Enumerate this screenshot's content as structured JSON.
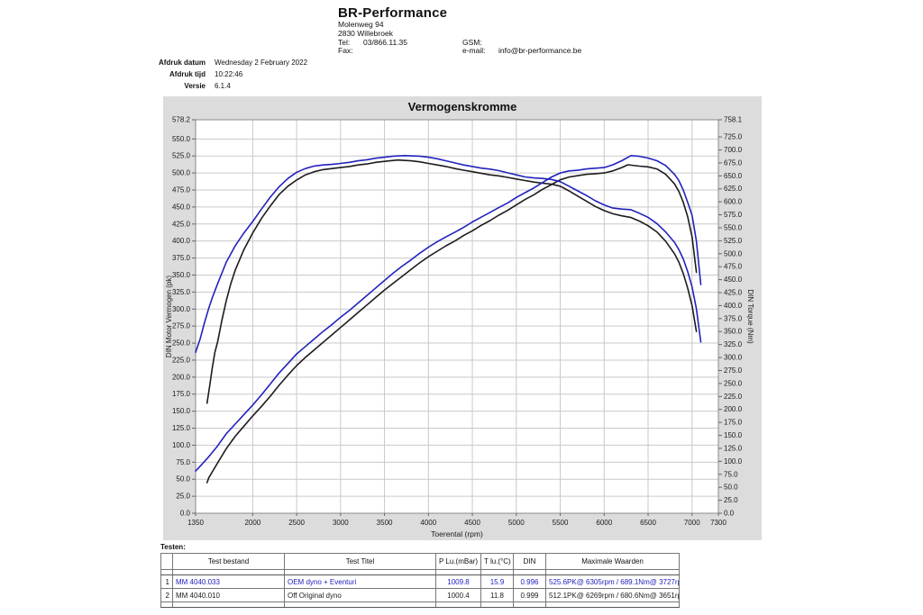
{
  "header": {
    "company": "BR-Performance",
    "address_line1": "Molenweg 94",
    "address_line2": "2830 Willebroek",
    "tel_label": "Tel:",
    "tel_value": "03/866.11.35",
    "fax_label": "Fax:",
    "fax_value": "",
    "gsm_label": "GSM:",
    "gsm_value": "",
    "email_label": "e-mail:",
    "email_value": "info@br-performance.be"
  },
  "meta": {
    "rows": [
      {
        "label": "Afdruk datum",
        "value": "Wednesday 2 February 2022"
      },
      {
        "label": "Afdruk tijd",
        "value": "10:22:46"
      },
      {
        "label": "Versie",
        "value": "6.1.4"
      }
    ]
  },
  "chart_data": {
    "type": "line",
    "title": "Vermogenskromme",
    "xlabel": "Toerental (rpm)",
    "ylabel_left": "DIN Motor Vermogen (pk)",
    "ylabel_right": "DIN Torque (Nm)",
    "x_range": [
      1350,
      7300
    ],
    "y_left_range": [
      0,
      578.2
    ],
    "y_right_range": [
      0,
      758.1
    ],
    "x_ticks": [
      1350,
      2000,
      2500,
      3000,
      3500,
      4000,
      4500,
      5000,
      5500,
      6000,
      6500,
      7000,
      7300
    ],
    "y_left_ticks": [
      578.2,
      550,
      525,
      500,
      475,
      450,
      425,
      400,
      375,
      350,
      325,
      300,
      275,
      250,
      225,
      200,
      175,
      150,
      125,
      100,
      75,
      50,
      25,
      0
    ],
    "y_right_ticks": [
      758.1,
      725,
      700,
      675,
      650,
      625,
      600,
      575,
      550,
      525,
      500,
      475,
      450,
      425,
      400,
      375,
      350,
      325,
      300,
      275,
      250,
      225,
      200,
      175,
      150,
      125,
      100,
      75,
      50,
      25,
      0
    ],
    "grid": true,
    "legend_position": "none",
    "colors": {
      "run1": "#2222bd",
      "run2": "#1c1c1c"
    },
    "series": [
      {
        "name": "OEM dyno + Eventuri - vermogen (pk)",
        "axis": "left",
        "color": "run1",
        "points": [
          [
            1350,
            62
          ],
          [
            1400,
            69
          ],
          [
            1500,
            83
          ],
          [
            1600,
            99
          ],
          [
            1700,
            117
          ],
          [
            1800,
            131
          ],
          [
            1900,
            145
          ],
          [
            2000,
            159
          ],
          [
            2100,
            174
          ],
          [
            2200,
            190
          ],
          [
            2300,
            206
          ],
          [
            2400,
            220
          ],
          [
            2500,
            234
          ],
          [
            2600,
            245
          ],
          [
            2700,
            256
          ],
          [
            2800,
            267
          ],
          [
            2900,
            277
          ],
          [
            3000,
            288
          ],
          [
            3100,
            298
          ],
          [
            3200,
            309
          ],
          [
            3300,
            320
          ],
          [
            3400,
            331
          ],
          [
            3500,
            342
          ],
          [
            3600,
            353
          ],
          [
            3700,
            363
          ],
          [
            3800,
            372
          ],
          [
            3900,
            382
          ],
          [
            4000,
            391
          ],
          [
            4100,
            399
          ],
          [
            4200,
            406
          ],
          [
            4300,
            413
          ],
          [
            4400,
            420
          ],
          [
            4500,
            428
          ],
          [
            4600,
            435
          ],
          [
            4700,
            442
          ],
          [
            4800,
            449
          ],
          [
            4900,
            456
          ],
          [
            5000,
            464
          ],
          [
            5100,
            471
          ],
          [
            5200,
            478
          ],
          [
            5300,
            486
          ],
          [
            5400,
            494
          ],
          [
            5500,
            500
          ],
          [
            5600,
            503
          ],
          [
            5700,
            504
          ],
          [
            5800,
            506
          ],
          [
            5900,
            507
          ],
          [
            6000,
            508
          ],
          [
            6100,
            512
          ],
          [
            6200,
            518
          ],
          [
            6305,
            525.6
          ],
          [
            6400,
            524.5
          ],
          [
            6500,
            522
          ],
          [
            6600,
            518
          ],
          [
            6700,
            511
          ],
          [
            6800,
            498
          ],
          [
            6850,
            489
          ],
          [
            6900,
            475
          ],
          [
            6950,
            457
          ],
          [
            7000,
            438
          ],
          [
            7050,
            400
          ],
          [
            7100,
            336
          ]
        ]
      },
      {
        "name": "OEM dyno + Eventuri - koppel (Nm)",
        "axis": "right",
        "color": "run1",
        "points": [
          [
            1350,
            310
          ],
          [
            1400,
            335
          ],
          [
            1450,
            366
          ],
          [
            1500,
            395
          ],
          [
            1550,
            420
          ],
          [
            1600,
            442
          ],
          [
            1700,
            484
          ],
          [
            1800,
            515
          ],
          [
            1900,
            540
          ],
          [
            2000,
            562
          ],
          [
            2100,
            586
          ],
          [
            2200,
            609
          ],
          [
            2300,
            629
          ],
          [
            2400,
            645
          ],
          [
            2500,
            657
          ],
          [
            2600,
            664
          ],
          [
            2700,
            669
          ],
          [
            2800,
            671
          ],
          [
            2900,
            672
          ],
          [
            3000,
            674
          ],
          [
            3100,
            676
          ],
          [
            3200,
            679
          ],
          [
            3300,
            681
          ],
          [
            3400,
            684
          ],
          [
            3500,
            686
          ],
          [
            3600,
            688
          ],
          [
            3727,
            689.1
          ],
          [
            3900,
            688
          ],
          [
            4000,
            686
          ],
          [
            4100,
            683
          ],
          [
            4200,
            679
          ],
          [
            4300,
            675
          ],
          [
            4400,
            671
          ],
          [
            4500,
            668
          ],
          [
            4600,
            665
          ],
          [
            4700,
            663
          ],
          [
            4800,
            660
          ],
          [
            4900,
            656
          ],
          [
            5000,
            652
          ],
          [
            5100,
            648
          ],
          [
            5200,
            646
          ],
          [
            5300,
            645
          ],
          [
            5400,
            643
          ],
          [
            5500,
            639
          ],
          [
            5600,
            630
          ],
          [
            5700,
            621
          ],
          [
            5800,
            612
          ],
          [
            5900,
            602
          ],
          [
            6000,
            594
          ],
          [
            6100,
            588
          ],
          [
            6200,
            586
          ],
          [
            6300,
            585
          ],
          [
            6400,
            578
          ],
          [
            6500,
            570
          ],
          [
            6600,
            558
          ],
          [
            6700,
            542
          ],
          [
            6800,
            522
          ],
          [
            6850,
            508
          ],
          [
            6900,
            490
          ],
          [
            6950,
            466
          ],
          [
            7000,
            436
          ],
          [
            7050,
            394
          ],
          [
            7100,
            330
          ]
        ]
      },
      {
        "name": "Off Original dyno - vermogen (pk)",
        "axis": "left",
        "color": "run2",
        "points": [
          [
            1480,
            45
          ],
          [
            1500,
            52
          ],
          [
            1550,
            63
          ],
          [
            1600,
            74
          ],
          [
            1700,
            95
          ],
          [
            1800,
            113
          ],
          [
            1900,
            128
          ],
          [
            2000,
            143
          ],
          [
            2100,
            157
          ],
          [
            2200,
            172
          ],
          [
            2300,
            188
          ],
          [
            2400,
            203
          ],
          [
            2500,
            217
          ],
          [
            2600,
            229
          ],
          [
            2700,
            240
          ],
          [
            2800,
            251
          ],
          [
            2900,
            262
          ],
          [
            3000,
            273
          ],
          [
            3100,
            284
          ],
          [
            3200,
            295
          ],
          [
            3300,
            306
          ],
          [
            3400,
            317
          ],
          [
            3500,
            328
          ],
          [
            3600,
            338
          ],
          [
            3700,
            348
          ],
          [
            3800,
            358
          ],
          [
            3900,
            368
          ],
          [
            4000,
            377
          ],
          [
            4100,
            385
          ],
          [
            4200,
            393
          ],
          [
            4300,
            400
          ],
          [
            4400,
            408
          ],
          [
            4500,
            415
          ],
          [
            4600,
            423
          ],
          [
            4700,
            430
          ],
          [
            4800,
            438
          ],
          [
            4900,
            445
          ],
          [
            5000,
            453
          ],
          [
            5100,
            461
          ],
          [
            5200,
            468
          ],
          [
            5300,
            476
          ],
          [
            5400,
            483
          ],
          [
            5500,
            490
          ],
          [
            5600,
            494
          ],
          [
            5700,
            496
          ],
          [
            5800,
            498
          ],
          [
            5900,
            499
          ],
          [
            6000,
            500
          ],
          [
            6100,
            503
          ],
          [
            6200,
            508
          ],
          [
            6269,
            512.1
          ],
          [
            6400,
            510
          ],
          [
            6500,
            509
          ],
          [
            6600,
            506
          ],
          [
            6700,
            498
          ],
          [
            6800,
            484
          ],
          [
            6850,
            473
          ],
          [
            6900,
            457
          ],
          [
            6950,
            436
          ],
          [
            7000,
            406
          ],
          [
            7050,
            354
          ]
        ]
      },
      {
        "name": "Off Original dyno - koppel (Nm)",
        "axis": "right",
        "color": "run2",
        "points": [
          [
            1480,
            212
          ],
          [
            1510,
            245
          ],
          [
            1540,
            280
          ],
          [
            1570,
            310
          ],
          [
            1600,
            330
          ],
          [
            1650,
            372
          ],
          [
            1700,
            410
          ],
          [
            1750,
            442
          ],
          [
            1800,
            468
          ],
          [
            1900,
            508
          ],
          [
            2000,
            540
          ],
          [
            2100,
            568
          ],
          [
            2200,
            592
          ],
          [
            2300,
            614
          ],
          [
            2400,
            630
          ],
          [
            2500,
            642
          ],
          [
            2600,
            652
          ],
          [
            2700,
            658
          ],
          [
            2800,
            662
          ],
          [
            2900,
            664
          ],
          [
            3000,
            666
          ],
          [
            3100,
            668
          ],
          [
            3200,
            671
          ],
          [
            3300,
            673
          ],
          [
            3400,
            676
          ],
          [
            3500,
            678
          ],
          [
            3651,
            680.6
          ],
          [
            3800,
            679
          ],
          [
            3900,
            677
          ],
          [
            4000,
            674
          ],
          [
            4100,
            671
          ],
          [
            4200,
            668
          ],
          [
            4300,
            664
          ],
          [
            4400,
            661
          ],
          [
            4500,
            658
          ],
          [
            4600,
            655
          ],
          [
            4700,
            652
          ],
          [
            4800,
            650
          ],
          [
            4900,
            647
          ],
          [
            5000,
            644
          ],
          [
            5100,
            641
          ],
          [
            5200,
            638
          ],
          [
            5300,
            636
          ],
          [
            5400,
            634
          ],
          [
            5500,
            630
          ],
          [
            5600,
            621
          ],
          [
            5700,
            611
          ],
          [
            5800,
            601
          ],
          [
            5900,
            591
          ],
          [
            6000,
            583
          ],
          [
            6100,
            577
          ],
          [
            6200,
            573
          ],
          [
            6300,
            570
          ],
          [
            6400,
            563
          ],
          [
            6500,
            554
          ],
          [
            6600,
            542
          ],
          [
            6700,
            524
          ],
          [
            6800,
            500
          ],
          [
            6850,
            484
          ],
          [
            6900,
            462
          ],
          [
            6950,
            434
          ],
          [
            7000,
            400
          ],
          [
            7050,
            350
          ]
        ]
      }
    ]
  },
  "testen_label": "Testen:",
  "table": {
    "columns": [
      "",
      "Test bestand",
      "Test Titel",
      "P Lu.(mBar)",
      "T lu.(°C)",
      "DIN",
      "Maximale Waarden"
    ],
    "rows": [
      {
        "num": "1",
        "test_bestand": "MM 4040.033",
        "test_titel": "OEM dyno + Eventuri",
        "p_lu": "1009.8",
        "t_lu": "15.9",
        "din": "0.996",
        "maximale_waarden": "525.6PK@ 6305rpm / 689.1Nm@ 3727rpm",
        "color": "#2222bd"
      },
      {
        "num": "2",
        "test_bestand": "MM 4040.010",
        "test_titel": "Off Original dyno",
        "p_lu": "1000.4",
        "t_lu": "11.8",
        "din": "0.999",
        "maximale_waarden": "512.1PK@ 6269rpm / 680.6Nm@ 3651rpm",
        "color": "#1c1c1c"
      }
    ]
  }
}
